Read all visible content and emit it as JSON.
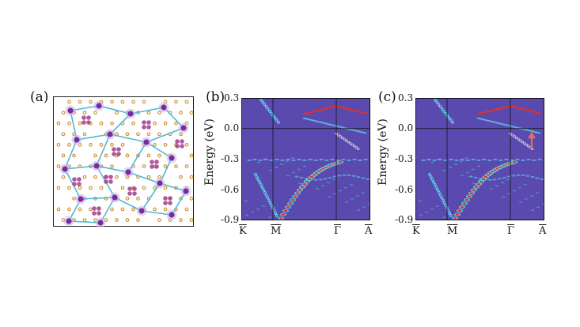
{
  "figure": {
    "panel_labels": [
      "(a)",
      "(b)",
      "(c)"
    ]
  },
  "colors": {
    "background": "#5a4ab0",
    "bond": "#4fb8d8",
    "atom_large": "#7a2aa0",
    "atom_small": "#cc8a2a",
    "cluster": "#a23b8a",
    "band_hot": "#e0302a",
    "band_cyan": "#5fe0f0",
    "arrow": "#e86a5a"
  },
  "chart_data": [
    {
      "type": "heatmap",
      "panel": "(b)",
      "ylabel": "Energy (eV)",
      "ylim": [
        -0.9,
        0.3
      ],
      "yticks": [
        "0.3",
        "0.0",
        "-0.3",
        "-0.6",
        "-0.9"
      ],
      "xticks": [
        "K",
        "M",
        "Γ",
        "A"
      ],
      "grid": "vertical lines at M and Γ, horizontal line at 0.0 eV"
    },
    {
      "type": "heatmap",
      "panel": "(c)",
      "ylabel": "Energy (eV)",
      "ylim": [
        -0.9,
        0.3
      ],
      "yticks": [
        "0.3",
        "0.0",
        "-0.3",
        "-0.6",
        "-0.9"
      ],
      "xticks": [
        "K",
        "M",
        "Γ",
        "A"
      ],
      "grid": "vertical lines at M and Γ, horizontal line at 0.0 eV",
      "annotation": "upward arrow near Γ–A"
    }
  ]
}
